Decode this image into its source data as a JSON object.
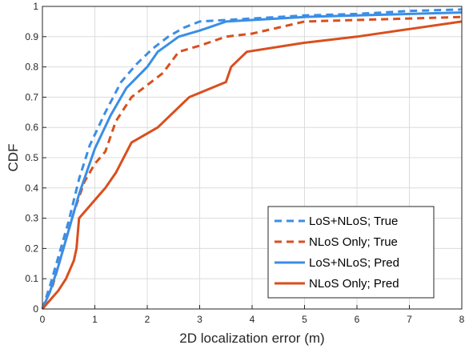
{
  "chart_data": {
    "type": "line",
    "title": "",
    "xlabel": "2D localization error (m)",
    "ylabel": "CDF",
    "xlim": [
      0,
      8
    ],
    "ylim": [
      0,
      1
    ],
    "xticks": [
      "0",
      "1",
      "2",
      "3",
      "4",
      "5",
      "6",
      "7",
      "8"
    ],
    "yticks": [
      "0",
      "0.1",
      "0.2",
      "0.3",
      "0.4",
      "0.5",
      "0.6",
      "0.7",
      "0.8",
      "0.9",
      "1"
    ],
    "grid": true,
    "legend_position": "bottom-right",
    "series": [
      {
        "name": "LoS+NLoS; True",
        "color": "#3a8ee6",
        "dash": "dashed",
        "x": [
          0,
          0.15,
          0.3,
          0.5,
          0.7,
          0.9,
          1.2,
          1.5,
          1.8,
          2.1,
          2.4,
          2.7,
          3.0,
          3.5,
          4.0,
          5.0,
          6.0,
          7.0,
          8.0
        ],
        "y": [
          0,
          0.08,
          0.17,
          0.29,
          0.43,
          0.54,
          0.65,
          0.75,
          0.81,
          0.86,
          0.9,
          0.93,
          0.95,
          0.955,
          0.96,
          0.97,
          0.975,
          0.985,
          0.99
        ]
      },
      {
        "name": "NLoS Only; True",
        "color": "#d94f1e",
        "dash": "dashed",
        "x": [
          0,
          0.2,
          0.4,
          0.6,
          0.8,
          1.0,
          1.2,
          1.4,
          1.7,
          2.0,
          2.3,
          2.6,
          3.0,
          3.5,
          4.0,
          4.5,
          5.0,
          6.0,
          7.0,
          8.0
        ],
        "y": [
          0,
          0.08,
          0.2,
          0.32,
          0.42,
          0.48,
          0.52,
          0.62,
          0.7,
          0.74,
          0.78,
          0.85,
          0.87,
          0.9,
          0.91,
          0.93,
          0.95,
          0.955,
          0.96,
          0.965
        ]
      },
      {
        "name": "LoS+NLoS; Pred",
        "color": "#3a8ee6",
        "dash": "solid",
        "x": [
          0,
          0.15,
          0.3,
          0.5,
          0.7,
          1.0,
          1.3,
          1.6,
          2.0,
          2.2,
          2.4,
          2.6,
          3.0,
          3.5,
          4.0,
          5.0,
          6.0,
          7.0,
          8.0
        ],
        "y": [
          0,
          0.06,
          0.14,
          0.26,
          0.38,
          0.53,
          0.64,
          0.73,
          0.8,
          0.85,
          0.875,
          0.9,
          0.92,
          0.95,
          0.955,
          0.965,
          0.97,
          0.975,
          0.98
        ]
      },
      {
        "name": "NLoS Only; Pred",
        "color": "#d94f1e",
        "dash": "solid",
        "x": [
          0,
          0.1,
          0.3,
          0.45,
          0.6,
          0.65,
          0.7,
          0.8,
          1.0,
          1.2,
          1.4,
          1.7,
          2.2,
          2.8,
          3.5,
          3.6,
          3.9,
          5.0,
          6.0,
          7.0,
          8.0
        ],
        "y": [
          0,
          0.02,
          0.06,
          0.1,
          0.16,
          0.2,
          0.3,
          0.32,
          0.36,
          0.4,
          0.45,
          0.55,
          0.6,
          0.7,
          0.75,
          0.8,
          0.85,
          0.88,
          0.9,
          0.925,
          0.95
        ]
      }
    ]
  }
}
